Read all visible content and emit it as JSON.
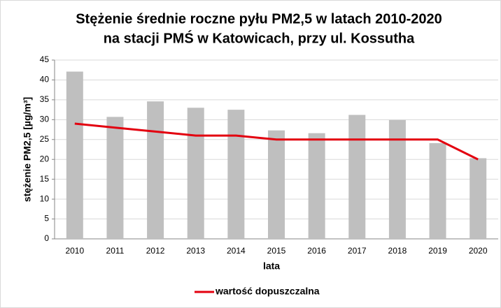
{
  "chart_data": {
    "type": "bar",
    "title": [
      "Stężenie średnie roczne pyłu PM2,5 w latach 2010-2020",
      "na stacji PMŚ w Katowicach, przy ul. Kossutha"
    ],
    "x_label": "lata",
    "y_label": "stężenie  PM2,5 [µg/m³]",
    "categories": [
      "2010",
      "2011",
      "2012",
      "2013",
      "2014",
      "2015",
      "2016",
      "2017",
      "2018",
      "2019",
      "2020"
    ],
    "series": [
      {
        "type": "bar",
        "color": "#bfbfbf",
        "values": [
          42.1,
          30.7,
          34.6,
          33.0,
          32.5,
          27.3,
          26.6,
          31.2,
          29.9,
          24.1,
          20.3
        ]
      },
      {
        "type": "line",
        "name": "wartość dopuszczalna",
        "color": "#e3000f",
        "values": [
          29,
          28,
          27,
          26,
          26,
          25,
          25,
          25,
          25,
          25,
          20
        ]
      }
    ],
    "ylim": [
      0,
      45
    ],
    "yticks": [
      0,
      5,
      10,
      15,
      20,
      25,
      30,
      35,
      40,
      45
    ],
    "grid": true,
    "legend": "bottom"
  }
}
